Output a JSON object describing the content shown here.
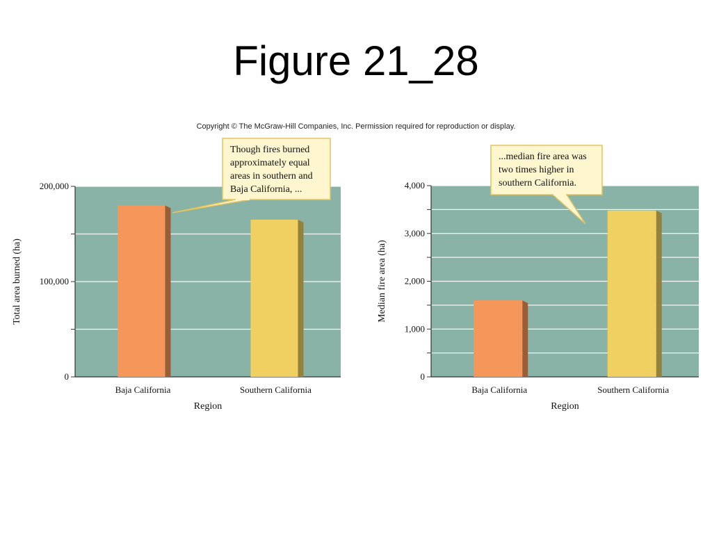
{
  "slide": {
    "title": "Figure 21_28",
    "copyright": "Copyright © The McGraw-Hill Companies, Inc. Permission required for reproduction or display."
  },
  "colors": {
    "plot_bg": "#8ab3a7",
    "baja": "#f5975a",
    "southern": "#efd060",
    "callout_bg": "#fdf6cf",
    "callout_border": "#e3c35d"
  },
  "chart_data": [
    {
      "type": "bar",
      "categories": [
        "Baja California",
        "Southern California"
      ],
      "values": [
        180000,
        165000
      ],
      "xlabel": "Region",
      "ylabel": "Total area burned (ha)",
      "ylim": [
        0,
        200000
      ],
      "yticks": [
        0,
        50000,
        100000,
        150000,
        200000
      ],
      "ytick_labels": [
        "0",
        "",
        "100,000",
        "",
        "200,000"
      ],
      "grid": true,
      "annotation": [
        "Though fires burned",
        "approximately equal",
        "areas in southern and",
        "Baja California, ..."
      ]
    },
    {
      "type": "bar",
      "categories": [
        "Baja California",
        "Southern California"
      ],
      "values": [
        1600,
        3480
      ],
      "xlabel": "Region",
      "ylabel": "Median fire area (ha)",
      "ylim": [
        0,
        4000
      ],
      "yticks": [
        0,
        500,
        1000,
        1500,
        2000,
        2500,
        3000,
        3500,
        4000
      ],
      "ytick_labels": [
        "0",
        "",
        "1,000",
        "",
        "2,000",
        "",
        "3,000",
        "",
        "4,000"
      ],
      "grid": true,
      "annotation": [
        "...median fire area was",
        "two times higher in",
        "southern California."
      ]
    }
  ]
}
